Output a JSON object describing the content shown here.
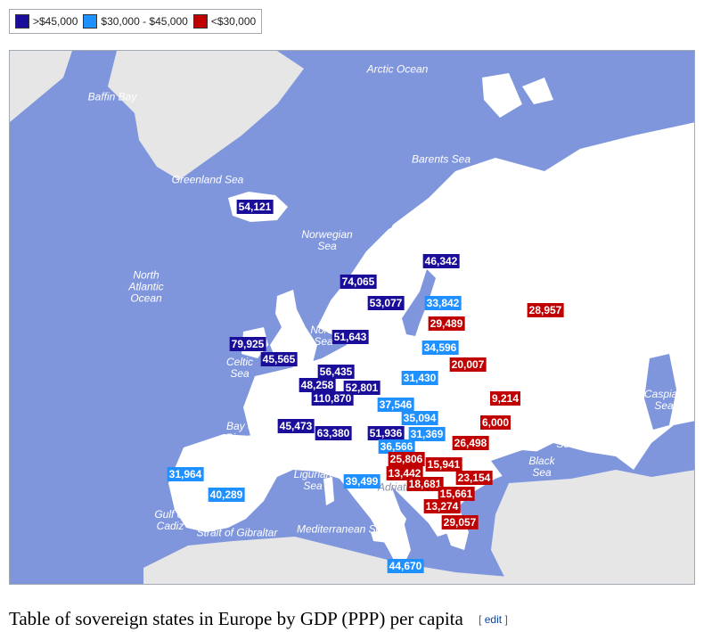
{
  "legend": [
    {
      "label": ">$45,000",
      "color": "#1a0d99"
    },
    {
      "label": "$30,000 - $45,000",
      "color": "#1e90ff"
    },
    {
      "label": "<$30,000",
      "color": "#c00000"
    }
  ],
  "colors": {
    "sea": "#7f96dd",
    "land_europe": "#ffffff",
    "land_other": "#e6e6e6",
    "tier_high": "#1a0d99",
    "tier_mid": "#1e90ff",
    "tier_low": "#c00000"
  },
  "sea_labels": {
    "baffin_bay": "Baffin Bay",
    "arctic_ocean": "Arctic Ocean",
    "greenland_sea": "Greenland Sea",
    "barents_sea": "Barents Sea",
    "norwegian_sea_1": "Norwegian",
    "norwegian_sea_2": "Sea",
    "north_atlantic_1": "North",
    "north_atlantic_2": "Atlantic",
    "north_atlantic_3": "Ocean",
    "north_sea_1": "North",
    "north_sea_2": "Sea",
    "celtic_sea_1": "Celtic",
    "celtic_sea_2": "Sea",
    "bay_of_biscay_1": "Bay of",
    "bay_of_biscay_2": "Biscay",
    "ligurian_sea_1": "Ligurian",
    "ligurian_sea_2": "Sea",
    "adriatic": "Adriatic",
    "black_sea_1": "Black",
    "black_sea_2": "Sea",
    "azov_sea_1": "Azov",
    "azov_sea_2": "Sea",
    "caspian_sea_1": "Caspian",
    "caspian_sea_2": "Sea",
    "gulf_of_cadiz_1": "Gulf of",
    "gulf_of_cadiz_2": "Cadiz",
    "strait_of_gibraltar": "Strait of Gibraltar",
    "mediterranean_sea": "Mediterranean Sea"
  },
  "gdp_values": [
    {
      "value": "54,121",
      "tier": "high"
    },
    {
      "value": "74,065",
      "tier": "high"
    },
    {
      "value": "46,342",
      "tier": "high"
    },
    {
      "value": "53,077",
      "tier": "high"
    },
    {
      "value": "33,842",
      "tier": "mid"
    },
    {
      "value": "29,489",
      "tier": "low"
    },
    {
      "value": "28,957",
      "tier": "low"
    },
    {
      "value": "51,643",
      "tier": "high"
    },
    {
      "value": "34,596",
      "tier": "mid"
    },
    {
      "value": "79,925",
      "tier": "high"
    },
    {
      "value": "45,565",
      "tier": "high"
    },
    {
      "value": "20,007",
      "tier": "low"
    },
    {
      "value": "56,435",
      "tier": "high"
    },
    {
      "value": "31,430",
      "tier": "mid"
    },
    {
      "value": "48,258",
      "tier": "high"
    },
    {
      "value": "52,801",
      "tier": "high"
    },
    {
      "value": "110,870",
      "tier": "high"
    },
    {
      "value": "9,214",
      "tier": "low"
    },
    {
      "value": "37,546",
      "tier": "mid"
    },
    {
      "value": "35,094",
      "tier": "mid"
    },
    {
      "value": "6,000",
      "tier": "low"
    },
    {
      "value": "45,473",
      "tier": "high"
    },
    {
      "value": "63,380",
      "tier": "high"
    },
    {
      "value": "51,936",
      "tier": "high"
    },
    {
      "value": "31,369",
      "tier": "mid"
    },
    {
      "value": "26,498",
      "tier": "low"
    },
    {
      "value": "36,566",
      "tier": "mid"
    },
    {
      "value": "25,806",
      "tier": "low"
    },
    {
      "value": "15,941",
      "tier": "low"
    },
    {
      "value": "31,964",
      "tier": "mid"
    },
    {
      "value": "13,442",
      "tier": "low"
    },
    {
      "value": "23,154",
      "tier": "low"
    },
    {
      "value": "40,289",
      "tier": "mid"
    },
    {
      "value": "39,499",
      "tier": "mid"
    },
    {
      "value": "18,681",
      "tier": "low"
    },
    {
      "value": "15,661",
      "tier": "low"
    },
    {
      "value": "13,274",
      "tier": "low"
    },
    {
      "value": "29,057",
      "tier": "low"
    },
    {
      "value": "44,670",
      "tier": "mid"
    }
  ],
  "caption": {
    "title": "Table of sovereign states in Europe by GDP (PPP) per capita",
    "edit_label": "edit",
    "bracket_open": "[",
    "bracket_close": "]"
  }
}
